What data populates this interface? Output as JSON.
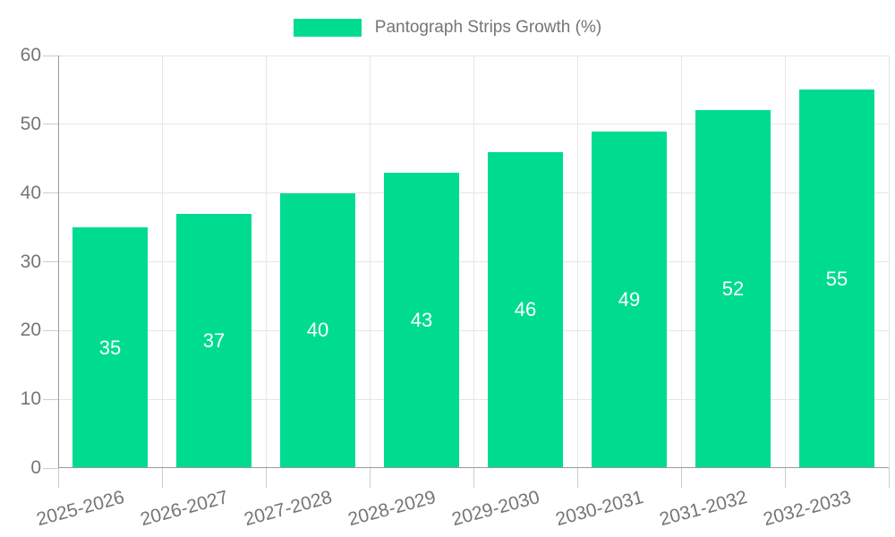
{
  "chart": {
    "legend": {
      "label": "Pantograph Strips Growth (%)"
    }
  },
  "chart_data": {
    "type": "bar",
    "title": "Pantograph Strips Growth (%)",
    "categories": [
      "2025-2026",
      "2026-2027",
      "2027-2028",
      "2028-2029",
      "2029-2030",
      "2030-2031",
      "2031-2032",
      "2032-2033"
    ],
    "values": [
      35,
      37,
      40,
      43,
      46,
      49,
      52,
      55
    ],
    "xlabel": "",
    "ylabel": "",
    "ylim": [
      0,
      60
    ],
    "yticks": [
      0,
      10,
      20,
      30,
      40,
      50,
      60
    ],
    "grid": true,
    "legend_position": "top-center",
    "bar_value_labels_inside": true,
    "x_label_rotation_deg": -15,
    "colors": {
      "bar": "#00DC8F",
      "bar_label": "#ffffff",
      "grid": "#e6e6e6",
      "axis": "#9a9a9a",
      "tick": "#cccccc",
      "text": "#757575",
      "background": "#ffffff"
    }
  }
}
